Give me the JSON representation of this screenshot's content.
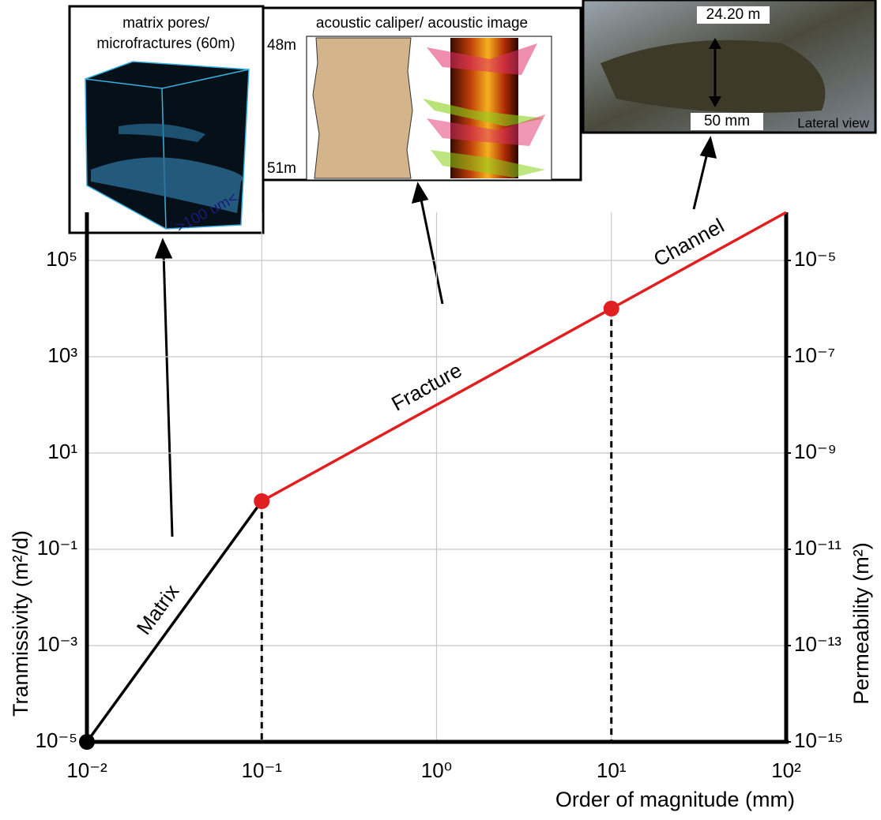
{
  "chart_data": {
    "type": "line",
    "x_label": "Order of magnitude (mm)",
    "y_label": "Tranmissivity (m²/d)",
    "y2_label": "Permeability (m²)",
    "log_x": true,
    "log_y": true,
    "grid": true,
    "xlim": [
      0.01,
      100
    ],
    "xticks": [
      {
        "value": 0.01,
        "label": "10⁻²"
      },
      {
        "value": 0.1,
        "label": "10⁻¹"
      },
      {
        "value": 1,
        "label": "10⁰"
      },
      {
        "value": 10,
        "label": "10¹"
      },
      {
        "value": 100,
        "label": "10²"
      }
    ],
    "ylim": [
      1e-05,
      1000000
    ],
    "yticks": [
      {
        "value": 1e-05,
        "label": "10⁻⁵"
      },
      {
        "value": 0.001,
        "label": "10⁻³"
      },
      {
        "value": 0.1,
        "label": "10⁻¹"
      },
      {
        "value": 10,
        "label": "10¹"
      },
      {
        "value": 1000,
        "label": "10³"
      },
      {
        "value": 100000,
        "label": "10⁵"
      }
    ],
    "y2lim": [
      1e-15,
      0.0001
    ],
    "y2ticks": [
      {
        "value": 1e-15,
        "label": "10⁻¹⁵"
      },
      {
        "value": 1e-13,
        "label": "10⁻¹³"
      },
      {
        "value": 1e-11,
        "label": "10⁻¹¹"
      },
      {
        "value": 1e-09,
        "label": "10⁻⁹"
      },
      {
        "value": 1e-07,
        "label": "10⁻⁷"
      },
      {
        "value": 1e-05,
        "label": "10⁻⁵"
      }
    ],
    "series": [
      {
        "name": "Matrix",
        "color": "#000000",
        "x": [
          0.01,
          0.1
        ],
        "values": [
          1e-05,
          1
        ]
      },
      {
        "name": "Fracture",
        "color": "#e02020",
        "x": [
          0.1,
          10
        ],
        "values": [
          1,
          10000
        ]
      },
      {
        "name": "Channel",
        "color": "#e02020",
        "x": [
          10,
          100
        ],
        "values": [
          10000,
          1000000
        ]
      }
    ],
    "points": {
      "x": [
        0.01,
        0.1,
        10
      ],
      "values": [
        1e-05,
        1,
        10000
      ],
      "colors": [
        "#000000",
        "#e02020",
        "#e02020"
      ]
    },
    "insets": [
      {
        "title": [
          "matrix pores/",
          "microfractures (60m)"
        ],
        "labels": [
          ">100 um<"
        ]
      },
      {
        "title": [
          "acoustic caliper/ acoustic image"
        ],
        "labels": [
          "48m",
          "51m"
        ]
      },
      {
        "title": [],
        "labels": [
          "24.20 m",
          "50 mm",
          "Lateral view"
        ]
      }
    ]
  }
}
